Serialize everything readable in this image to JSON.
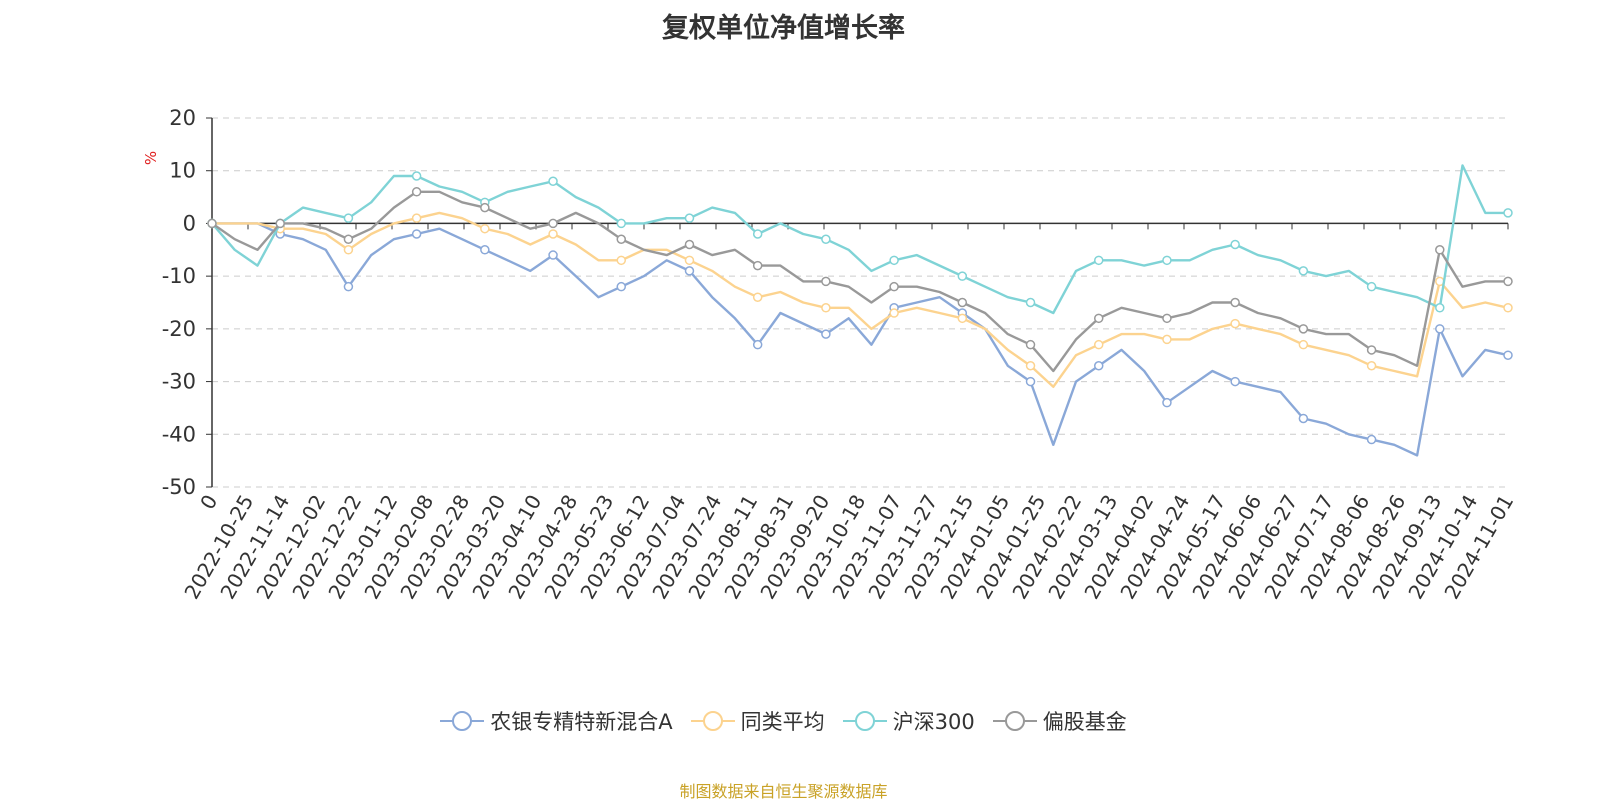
{
  "chart_data": {
    "type": "line",
    "title": "复权单位净值增长率",
    "ylabel": "%",
    "ylim": [
      -50,
      20
    ],
    "yticks": [
      20,
      10,
      0,
      -10,
      -20,
      -30,
      -40,
      -50
    ],
    "grid": true,
    "legend_position": "bottom",
    "x_tick_labels": [
      "0",
      "2022-10-25",
      "2022-11-14",
      "2022-12-02",
      "2022-12-22",
      "2023-01-12",
      "2023-02-08",
      "2023-02-28",
      "2023-03-20",
      "2023-04-10",
      "2023-04-28",
      "2023-05-23",
      "2023-06-12",
      "2023-07-04",
      "2023-07-24",
      "2023-08-11",
      "2023-08-31",
      "2023-09-20",
      "2023-10-18",
      "2023-11-07",
      "2023-11-27",
      "2023-12-15",
      "2024-01-05",
      "2024-01-25",
      "2024-02-22",
      "2024-03-13",
      "2024-04-02",
      "2024-04-24",
      "2024-05-17",
      "2024-06-06",
      "2024-06-27",
      "2024-07-17",
      "2024-08-06",
      "2024-08-26",
      "2024-09-13",
      "2024-10-14",
      "2024-11-01"
    ],
    "series": [
      {
        "name": "农银专精特新混合A",
        "color": "#8aa8d8",
        "values": [
          0,
          0,
          0,
          -2,
          -3,
          -5,
          -12,
          -6,
          -3,
          -2,
          -1,
          -3,
          -5,
          -7,
          -9,
          -6,
          -10,
          -14,
          -12,
          -10,
          -7,
          -9,
          -14,
          -18,
          -23,
          -17,
          -19,
          -21,
          -18,
          -23,
          -16,
          -15,
          -14,
          -17,
          -20,
          -27,
          -30,
          -42,
          -30,
          -27,
          -24,
          -28,
          -34,
          -31,
          -28,
          -30,
          -31,
          -32,
          -37,
          -38,
          -40,
          -41,
          -42,
          -44,
          -20,
          -29,
          -24,
          -25
        ]
      },
      {
        "name": "同类平均",
        "color": "#fcd38f",
        "values": [
          0,
          0,
          0,
          -1,
          -1,
          -2,
          -5,
          -2,
          0,
          1,
          2,
          1,
          -1,
          -2,
          -4,
          -2,
          -4,
          -7,
          -7,
          -5,
          -5,
          -7,
          -9,
          -12,
          -14,
          -13,
          -15,
          -16,
          -16,
          -20,
          -17,
          -16,
          -17,
          -18,
          -20,
          -24,
          -27,
          -31,
          -25,
          -23,
          -21,
          -21,
          -22,
          -22,
          -20,
          -19,
          -20,
          -21,
          -23,
          -24,
          -25,
          -27,
          -28,
          -29,
          -11,
          -16,
          -15,
          -16
        ]
      },
      {
        "name": "沪深300",
        "color": "#7fd3d6",
        "values": [
          0,
          -5,
          -8,
          0,
          3,
          2,
          1,
          4,
          9,
          9,
          7,
          6,
          4,
          6,
          7,
          8,
          5,
          3,
          0,
          0,
          1,
          1,
          3,
          2,
          -2,
          0,
          -2,
          -3,
          -5,
          -9,
          -7,
          -6,
          -8,
          -10,
          -12,
          -14,
          -15,
          -17,
          -9,
          -7,
          -7,
          -8,
          -7,
          -7,
          -5,
          -4,
          -6,
          -7,
          -9,
          -10,
          -9,
          -12,
          -13,
          -14,
          -16,
          11,
          2,
          2
        ]
      },
      {
        "name": "偏股基金",
        "color": "#999999",
        "values": [
          0,
          -3,
          -5,
          0,
          0,
          -1,
          -3,
          -1,
          3,
          6,
          6,
          4,
          3,
          1,
          -1,
          0,
          2,
          0,
          -3,
          -5,
          -6,
          -4,
          -6,
          -5,
          -8,
          -8,
          -11,
          -11,
          -12,
          -15,
          -12,
          -12,
          -13,
          -15,
          -17,
          -21,
          -23,
          -28,
          -22,
          -18,
          -16,
          -17,
          -18,
          -17,
          -15,
          -15,
          -17,
          -18,
          -20,
          -21,
          -21,
          -24,
          -25,
          -27,
          -5,
          -12,
          -11,
          -11
        ]
      }
    ]
  },
  "footer": {
    "source": "制图数据来自恒生聚源数据库"
  }
}
